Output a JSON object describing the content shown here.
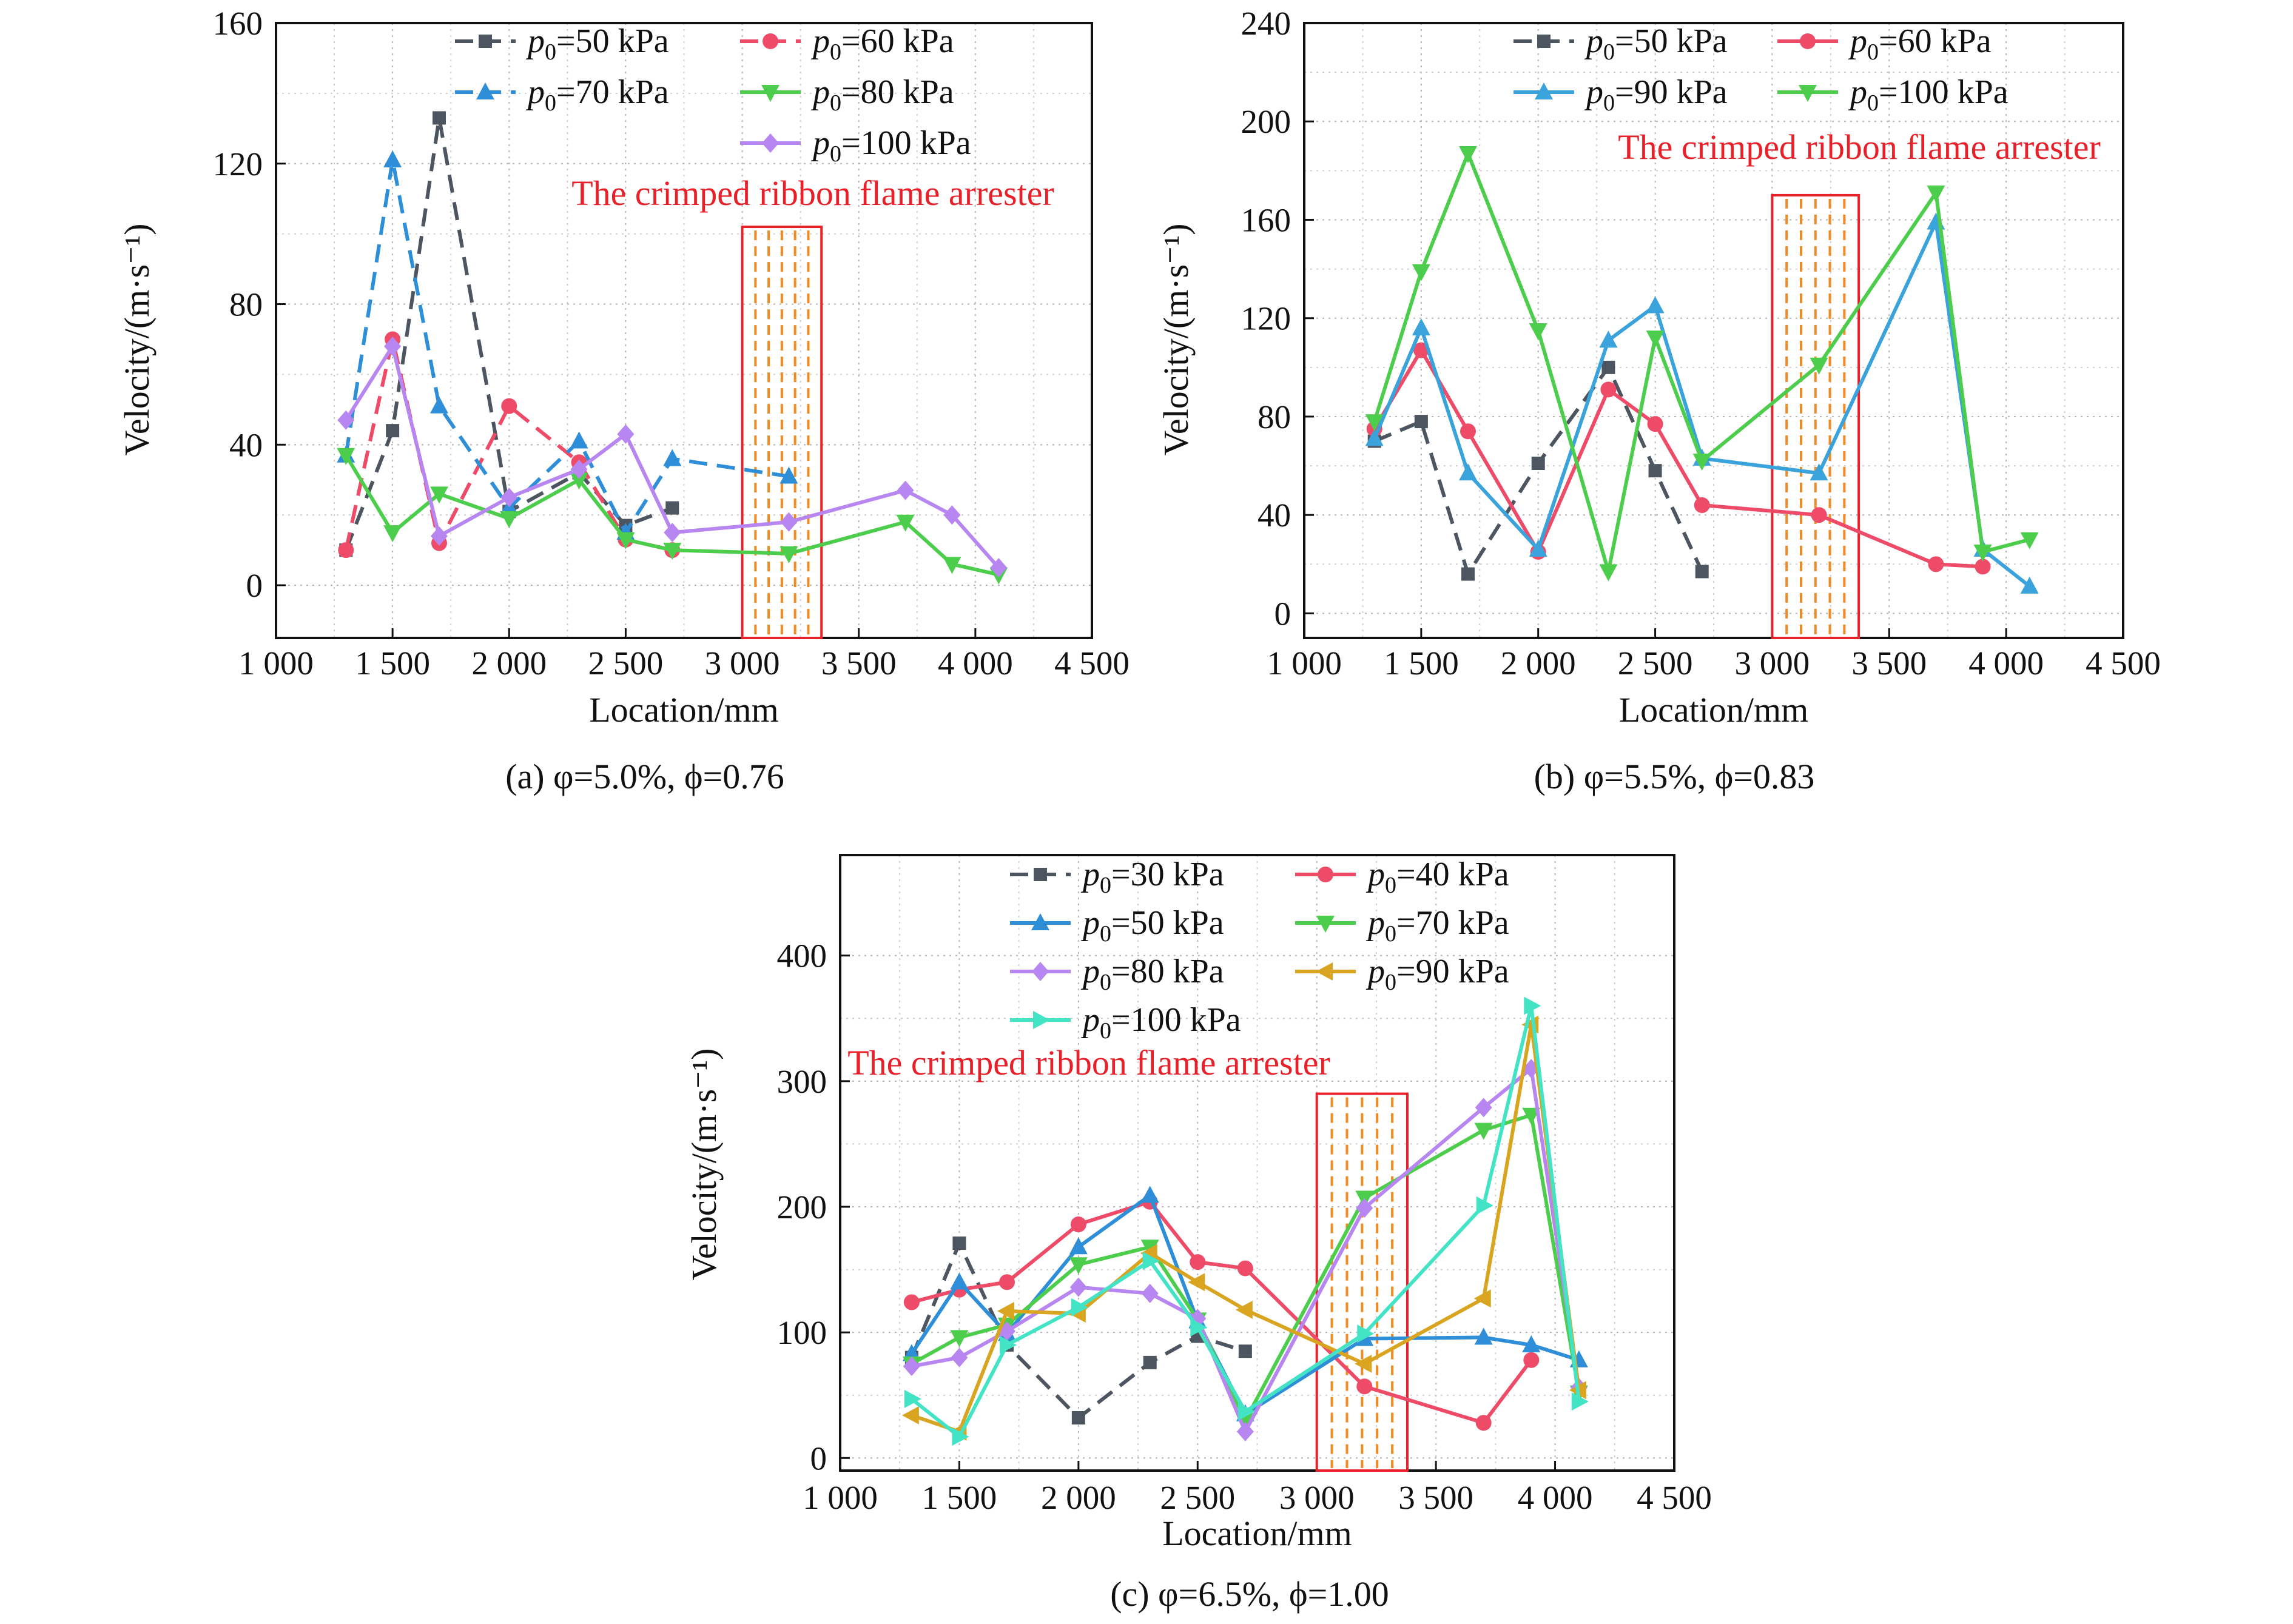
{
  "chart_data": [
    {
      "type": "line",
      "id": "a",
      "caption": "(a) φ=5.0%, ϕ=0.76",
      "xlabel": "Location/mm",
      "ylabel": "Velocity/(m·s⁻¹)",
      "xlim": [
        1000,
        4500
      ],
      "ylim": [
        -15,
        160
      ],
      "xticks": [
        1000,
        1500,
        2000,
        2500,
        3000,
        3500,
        4000,
        4500
      ],
      "xtick_labels": [
        "1 000",
        "1 500",
        "2 000",
        "2 500",
        "3 000",
        "3 500",
        "4 000",
        "4 500"
      ],
      "yticks": [
        0,
        40,
        80,
        120,
        160
      ],
      "ytick_labels": [
        "0",
        "40",
        "80",
        "120",
        "160"
      ],
      "grid": true,
      "legend_position": "top-right",
      "annotation": "The crimped ribbon flame arrester",
      "arrester_x": [
        3000,
        3340
      ],
      "arrester_top": 102,
      "series": [
        {
          "name": "p0=50 kPa",
          "label_sym": "p",
          "label_sub": "0",
          "label_rest": "=50 kPa",
          "color": "#4d5560",
          "dash": "dash",
          "marker": "square",
          "x": [
            1300,
            1500,
            1700,
            2000,
            2300,
            2500,
            2700
          ],
          "y": [
            10,
            44,
            133,
            21,
            32,
            17,
            22
          ]
        },
        {
          "name": "p0=60 kPa",
          "label_sym": "p",
          "label_sub": "0",
          "label_rest": "=60 kPa",
          "color": "#ee4b68",
          "dash": "dash",
          "marker": "circle",
          "x": [
            1300,
            1500,
            1700,
            2000,
            2300,
            2500,
            2700
          ],
          "y": [
            10,
            70,
            12,
            51,
            35,
            13,
            10
          ]
        },
        {
          "name": "p0=70 kPa",
          "label_sym": "p",
          "label_sub": "0",
          "label_rest": "=70 kPa",
          "color": "#2e8fd8",
          "dash": "dash",
          "marker": "triangle-up",
          "x": [
            1300,
            1500,
            1700,
            2000,
            2300,
            2500,
            2700,
            3200
          ],
          "y": [
            37,
            121,
            51,
            22,
            41,
            15,
            36,
            31
          ]
        },
        {
          "name": "p0=80 kPa",
          "label_sym": "p",
          "label_sub": "0",
          "label_rest": "=80 kPa",
          "color": "#4ccd4c",
          "dash": "solid",
          "marker": "triangle-down",
          "x": [
            1300,
            1500,
            1700,
            2000,
            2300,
            2500,
            2700,
            3200,
            3700,
            3900,
            4100
          ],
          "y": [
            37,
            15,
            26,
            19,
            30,
            13,
            10,
            9,
            18,
            6,
            3
          ]
        },
        {
          "name": "p0=100 kPa",
          "label_sym": "p",
          "label_sub": "0",
          "label_rest": "=100 kPa",
          "color": "#b886f0",
          "dash": "solid",
          "marker": "diamond",
          "x": [
            1300,
            1500,
            1700,
            2000,
            2300,
            2500,
            2700,
            3200,
            3700,
            3900,
            4100
          ],
          "y": [
            47,
            68,
            14,
            25,
            33,
            43,
            15,
            18,
            27,
            20,
            5
          ]
        }
      ]
    },
    {
      "type": "line",
      "id": "b",
      "caption": "(b) φ=5.5%, ϕ=0.83",
      "xlabel": "Location/mm",
      "ylabel": "Velocity/(m·s⁻¹)",
      "xlim": [
        1000,
        4500
      ],
      "ylim": [
        -10,
        240
      ],
      "xticks": [
        1000,
        1500,
        2000,
        2500,
        3000,
        3500,
        4000,
        4500
      ],
      "xtick_labels": [
        "1 000",
        "1 500",
        "2 000",
        "2 500",
        "3 000",
        "3 500",
        "4 000",
        "4 500"
      ],
      "yticks": [
        0,
        40,
        80,
        120,
        160,
        200,
        240
      ],
      "ytick_labels": [
        "0",
        "40",
        "80",
        "120",
        "160",
        "200",
        "240"
      ],
      "grid": true,
      "legend_position": "top-right",
      "annotation": "The crimped ribbon flame arrester",
      "arrester_x": [
        3000,
        3370
      ],
      "arrester_top": 170,
      "series": [
        {
          "name": "p0=50 kPa",
          "label_sym": "p",
          "label_sub": "0",
          "label_rest": "=50 kPa",
          "color": "#4d5560",
          "dash": "dash",
          "marker": "square",
          "x": [
            1300,
            1500,
            1700,
            2000,
            2300,
            2500,
            2700
          ],
          "y": [
            70,
            78,
            16,
            61,
            100,
            58,
            17
          ]
        },
        {
          "name": "p0=60 kPa",
          "label_sym": "p",
          "label_sub": "0",
          "label_rest": "=60 kPa",
          "color": "#ee4b68",
          "dash": "solid",
          "marker": "circle",
          "x": [
            1300,
            1500,
            1700,
            2000,
            2300,
            2500,
            2700,
            3200,
            3700,
            3900
          ],
          "y": [
            75,
            107,
            74,
            25,
            91,
            77,
            44,
            40,
            20,
            19
          ]
        },
        {
          "name": "p0=90 kPa",
          "label_sym": "p",
          "label_sub": "0",
          "label_rest": "=90 kPa",
          "color": "#3aa3db",
          "dash": "solid",
          "marker": "triangle-up",
          "x": [
            1300,
            1500,
            1700,
            2000,
            2300,
            2500,
            2700,
            3200,
            3700,
            3900,
            4100
          ],
          "y": [
            71,
            116,
            57,
            26,
            111,
            125,
            63,
            57,
            159,
            26,
            11
          ]
        },
        {
          "name": "p0=100 kPa",
          "label_sym": "p",
          "label_sub": "0",
          "label_rest": "=100 kPa",
          "color": "#4ccd4c",
          "dash": "solid",
          "marker": "triangle-down",
          "x": [
            1300,
            1500,
            1700,
            2000,
            2300,
            2500,
            2700,
            3200,
            3700,
            3900,
            4100
          ],
          "y": [
            78,
            139,
            187,
            115,
            17,
            112,
            62,
            101,
            171,
            25,
            30
          ]
        }
      ]
    },
    {
      "type": "line",
      "id": "c",
      "caption": "(c) φ=6.5%, ϕ=1.00",
      "xlabel": "Location/mm",
      "ylabel": "Velocity/(m·s⁻¹)",
      "xlim": [
        1000,
        4500
      ],
      "ylim": [
        -10,
        480
      ],
      "xticks": [
        1000,
        1500,
        2000,
        2500,
        3000,
        3500,
        4000,
        4500
      ],
      "xtick_labels": [
        "1 000",
        "1 500",
        "2 000",
        "2 500",
        "3 000",
        "3 500",
        "4 000",
        "4 500"
      ],
      "yticks": [
        0,
        100,
        200,
        300,
        400
      ],
      "ytick_labels": [
        "0",
        "100",
        "200",
        "300",
        "400"
      ],
      "grid": true,
      "legend_position": "top-right",
      "annotation": "The crimped ribbon flame arrester",
      "arrester_x": [
        3000,
        3380
      ],
      "arrester_top": 290,
      "series": [
        {
          "name": "p0=30 kPa",
          "label_sym": "p",
          "label_sub": "0",
          "label_rest": "=30 kPa",
          "color": "#4d5560",
          "dash": "dash",
          "marker": "square",
          "x": [
            1300,
            1500,
            1700,
            2000,
            2300,
            2500,
            2700
          ],
          "y": [
            80,
            171,
            90,
            32,
            76,
            97,
            85
          ]
        },
        {
          "name": "p0=40 kPa",
          "label_sym": "p",
          "label_sub": "0",
          "label_rest": "=40 kPa",
          "color": "#ee4b68",
          "dash": "solid",
          "marker": "circle",
          "x": [
            1300,
            1500,
            1700,
            2000,
            2300,
            2500,
            2700,
            3200,
            3700,
            3900
          ],
          "y": [
            124,
            134,
            140,
            186,
            204,
            156,
            151,
            57,
            28,
            78
          ]
        },
        {
          "name": "p0=50 kPa",
          "label_sym": "p",
          "label_sub": "0",
          "label_rest": "=50 kPa",
          "color": "#2e8fd8",
          "dash": "solid",
          "marker": "triangle-up",
          "x": [
            1300,
            1500,
            1700,
            2000,
            2300,
            2500,
            2700,
            3200,
            3700,
            3900,
            4100
          ],
          "y": [
            83,
            140,
            99,
            168,
            209,
            109,
            35,
            95,
            96,
            90,
            78
          ]
        },
        {
          "name": "p0=70 kPa",
          "label_sym": "p",
          "label_sub": "0",
          "label_rest": "=70 kPa",
          "color": "#4ccd4c",
          "dash": "solid",
          "marker": "triangle-down",
          "x": [
            1300,
            1500,
            1700,
            2000,
            2300,
            2500,
            2700,
            3200,
            3700,
            3900,
            4100
          ],
          "y": [
            75,
            96,
            106,
            154,
            168,
            110,
            30,
            207,
            261,
            273,
            52
          ]
        },
        {
          "name": "p0=80 kPa",
          "label_sym": "p",
          "label_sub": "0",
          "label_rest": "=80 kPa",
          "color": "#b886f0",
          "dash": "solid",
          "marker": "diamond",
          "x": [
            1300,
            1500,
            1700,
            2000,
            2300,
            2500,
            2700,
            3200,
            3700,
            3900,
            4100
          ],
          "y": [
            73,
            80,
            101,
            136,
            131,
            111,
            21,
            199,
            279,
            310,
            56
          ]
        },
        {
          "name": "p0=90 kPa",
          "label_sym": "p",
          "label_sub": "0",
          "label_rest": "=90 kPa",
          "color": "#d9a521",
          "dash": "solid",
          "marker": "triangle-left",
          "x": [
            1300,
            1500,
            1700,
            2000,
            2300,
            2500,
            2700,
            3200,
            3700,
            3900,
            4100
          ],
          "y": [
            34,
            21,
            117,
            115,
            163,
            140,
            118,
            75,
            127,
            345,
            54
          ]
        },
        {
          "name": "p0=100 kPa",
          "label_sym": "p",
          "label_sub": "0",
          "label_rest": "=100 kPa",
          "color": "#43e3c6",
          "dash": "solid",
          "marker": "triangle-right",
          "x": [
            1300,
            1500,
            1700,
            2000,
            2300,
            2500,
            2700,
            3200,
            3700,
            3900,
            4100
          ],
          "y": [
            47,
            17,
            90,
            120,
            157,
            104,
            37,
            99,
            201,
            360,
            45
          ]
        }
      ]
    }
  ]
}
